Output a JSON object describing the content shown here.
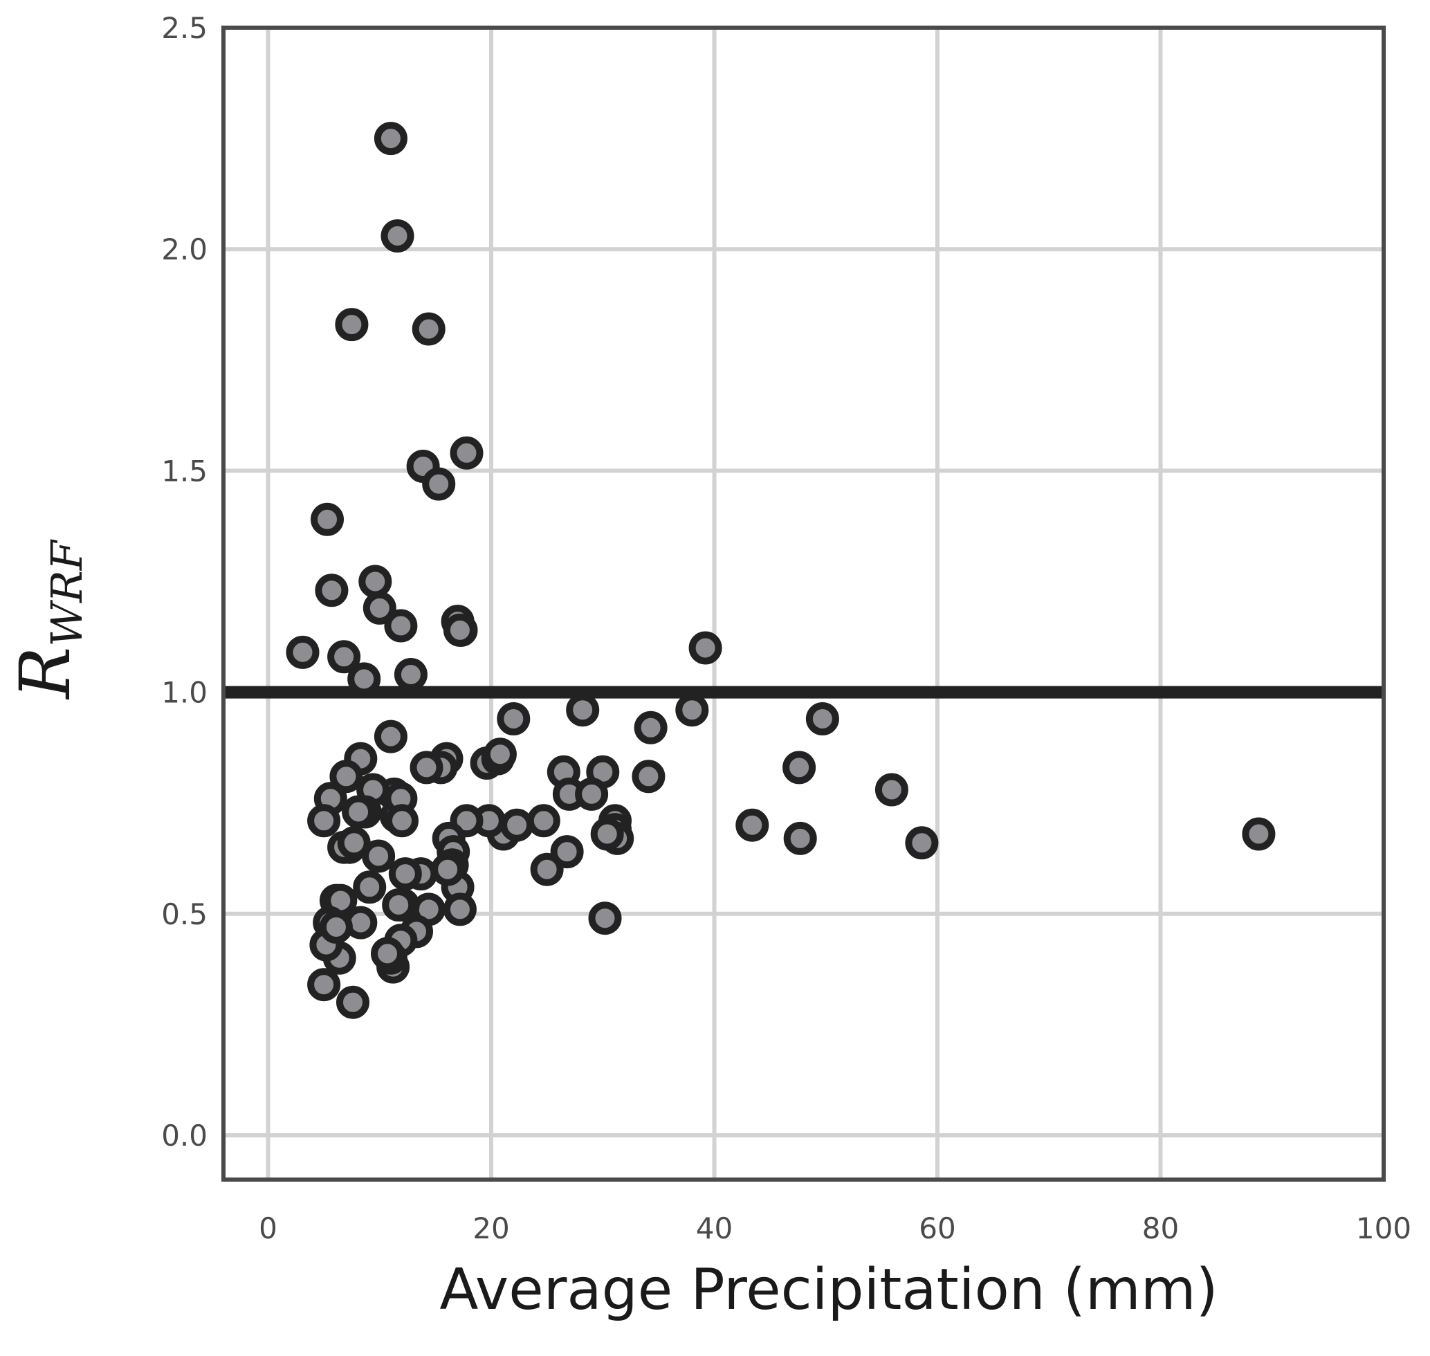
{
  "chart_data": {
    "type": "scatter",
    "title": "",
    "xlabel": "Average Precipitation (mm)",
    "ylabel": {
      "main": "R",
      "sub": "WRF"
    },
    "xlim": [
      -4,
      100
    ],
    "ylim": [
      -0.1,
      2.5
    ],
    "xticks": [
      0,
      20,
      40,
      60,
      80,
      100
    ],
    "yticks": [
      0.0,
      0.5,
      1.0,
      1.5,
      2.0,
      2.5
    ],
    "xtick_labels": [
      "0",
      "20",
      "40",
      "60",
      "80",
      "100"
    ],
    "ytick_labels": [
      "0.0",
      "0.5",
      "1.0",
      "1.5",
      "2.0",
      "2.5"
    ],
    "grid": true,
    "legend": "none",
    "reference_line": {
      "y": 1.0,
      "color": "#222222"
    },
    "colors": {
      "marker_fill": "#8e8e92",
      "marker_edge": "#222222",
      "grid": "#d2d2d2",
      "frame": "#4a4a4a"
    },
    "series": [
      {
        "x": [
          11.0,
          11.6,
          7.5,
          14.4,
          17.8,
          13.9,
          15.3,
          5.3,
          5.7,
          9.6,
          10.0,
          11.9,
          17.0,
          17.3,
          17.2,
          3.1,
          6.8,
          8.6,
          12.8,
          39.2,
          28.2,
          38.0,
          22.0,
          34.3,
          49.7,
          47.6,
          55.9,
          43.4,
          47.7,
          58.6,
          88.8,
          30.0,
          31.1,
          34.1,
          26.5,
          27.0,
          29.0,
          24.7,
          26.8,
          25.0,
          30.2,
          31.1,
          31.3,
          30.4,
          19.6,
          20.6,
          20.8,
          21.1,
          22.3,
          19.8,
          17.8,
          16.0,
          16.2,
          16.6,
          16.5,
          17.0,
          17.2,
          16.1,
          14.4,
          15.5,
          14.2,
          13.7,
          13.3,
          12.3,
          12.1,
          11.9,
          11.7,
          11.2,
          11.0,
          10.7,
          11.3,
          11.5,
          11.0,
          11.9,
          12.0,
          9.4,
          9.9,
          8.3,
          8.7,
          7.0,
          7.3,
          5.6,
          5.0,
          6.8,
          6.1,
          6.5,
          7.7,
          8.3,
          9.1,
          8.1,
          6.4,
          5.5,
          5.2,
          6.1,
          5.0,
          7.6
        ],
        "y": [
          2.25,
          2.03,
          1.83,
          1.82,
          1.54,
          1.51,
          1.47,
          1.39,
          1.23,
          1.25,
          1.19,
          1.15,
          1.16,
          1.14,
          1.14,
          1.09,
          1.08,
          1.03,
          1.04,
          1.1,
          0.96,
          0.96,
          0.94,
          0.92,
          0.94,
          0.83,
          0.78,
          0.7,
          0.67,
          0.66,
          0.68,
          0.82,
          0.71,
          0.81,
          0.82,
          0.77,
          0.77,
          0.71,
          0.64,
          0.6,
          0.49,
          0.69,
          0.67,
          0.68,
          0.84,
          0.85,
          0.86,
          0.68,
          0.7,
          0.71,
          0.71,
          0.85,
          0.67,
          0.64,
          0.61,
          0.56,
          0.51,
          0.6,
          0.51,
          0.83,
          0.83,
          0.59,
          0.46,
          0.59,
          0.52,
          0.44,
          0.52,
          0.38,
          0.4,
          0.41,
          0.77,
          0.72,
          0.9,
          0.76,
          0.71,
          0.78,
          0.63,
          0.85,
          0.73,
          0.81,
          0.65,
          0.76,
          0.71,
          0.65,
          0.53,
          0.53,
          0.66,
          0.48,
          0.56,
          0.73,
          0.4,
          0.48,
          0.43,
          0.47,
          0.34,
          0.3
        ]
      }
    ]
  }
}
